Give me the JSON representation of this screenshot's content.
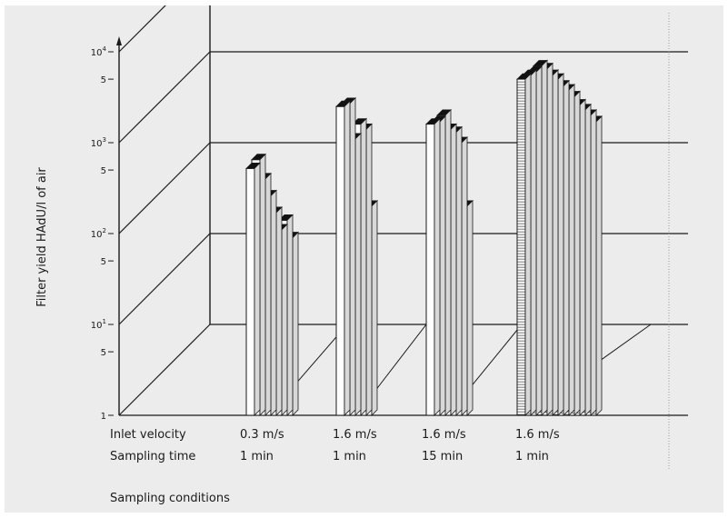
{
  "chart_data": {
    "type": "bar",
    "subtype": "3d-log-bar-groups",
    "ylabel": "Filter yield HAdU/l of air",
    "xlabel": "Sampling conditions",
    "y_scale": "log",
    "ylim": [
      1,
      10000
    ],
    "y_ticks": [
      {
        "value": 1,
        "base": "1",
        "exp": ""
      },
      {
        "value": 5,
        "base": "5",
        "exp": ""
      },
      {
        "value": 10,
        "base": "10",
        "exp": "1"
      },
      {
        "value": 50,
        "base": "5",
        "exp": ""
      },
      {
        "value": 100,
        "base": "10",
        "exp": "2"
      },
      {
        "value": 500,
        "base": "5",
        "exp": ""
      },
      {
        "value": 1000,
        "base": "10",
        "exp": "3"
      },
      {
        "value": 5000,
        "base": "5",
        "exp": ""
      },
      {
        "value": 10000,
        "base": "10",
        "exp": "4"
      }
    ],
    "condition_rows": [
      {
        "label": "Inlet velocity",
        "values": [
          "0.3 m/s",
          "1.6 m/s",
          "1.6 m/s",
          "1.6 m/s"
        ]
      },
      {
        "label": "Sampling time",
        "values": [
          "1 min",
          "1 min",
          "15 min",
          "1 min"
        ]
      }
    ],
    "groups": [
      {
        "values": [
          520,
          650,
          400,
          260,
          170,
          110,
          140,
          90
        ]
      },
      {
        "values": [
          2500,
          2700,
          1100,
          1600,
          1400,
          200
        ]
      },
      {
        "values": [
          1600,
          1700,
          2000,
          1400,
          1300,
          1000,
          200
        ]
      },
      {
        "values": [
          5000,
          5500,
          6000,
          7000,
          6500,
          5500,
          5000,
          4200,
          3800,
          3200,
          2600,
          2300,
          2000,
          1700
        ]
      }
    ]
  }
}
